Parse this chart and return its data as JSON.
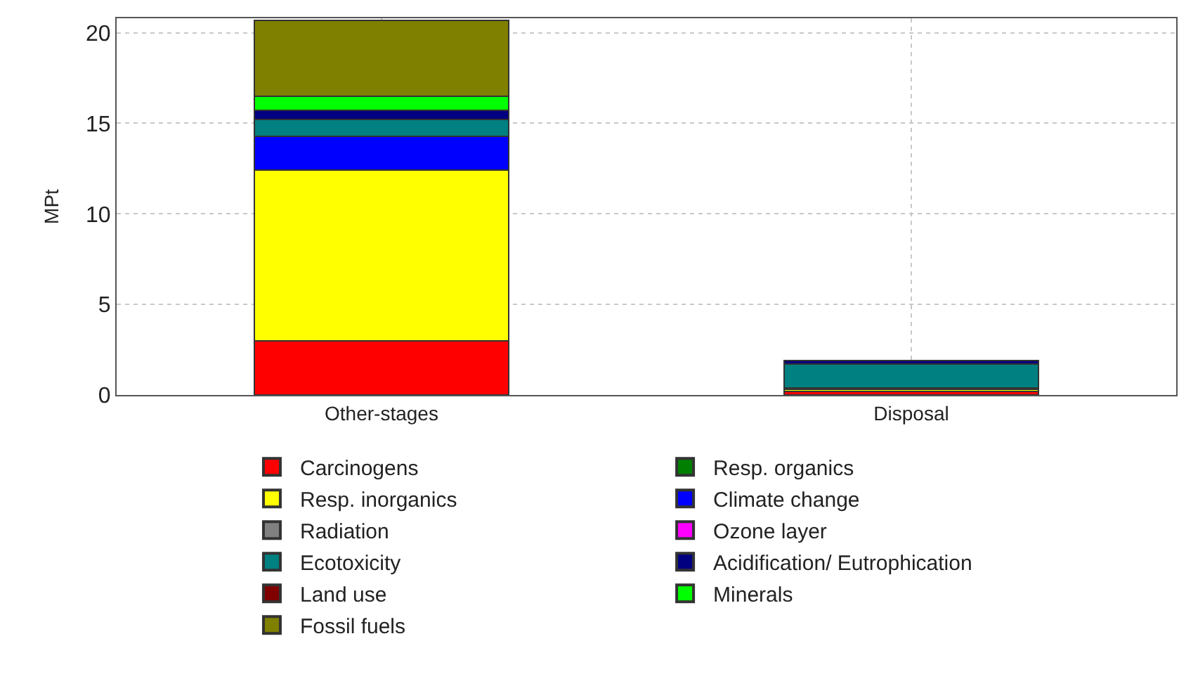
{
  "chart_data": {
    "type": "bar",
    "stacked": true,
    "ylabel": "MPt",
    "categories": [
      "Other-stages",
      "Disposal"
    ],
    "series": [
      {
        "name": "Carcinogens",
        "color": "#ff0000",
        "values": [
          3.0,
          0.2
        ]
      },
      {
        "name": "Resp. organics",
        "color": "#007f00",
        "values": [
          0,
          0
        ]
      },
      {
        "name": "Resp. inorganics",
        "color": "#ffff00",
        "values": [
          9.4,
          0.1
        ]
      },
      {
        "name": "Climate change",
        "color": "#0000ff",
        "values": [
          1.9,
          0.1
        ]
      },
      {
        "name": "Radiation",
        "color": "#808080",
        "values": [
          0,
          0
        ]
      },
      {
        "name": "Ozone layer",
        "color": "#ff00ff",
        "values": [
          0,
          0
        ]
      },
      {
        "name": "Ecotoxicity",
        "color": "#008080",
        "values": [
          0.9,
          1.3
        ]
      },
      {
        "name": "Acidification/ Eutrophication",
        "color": "#000080",
        "values": [
          0.5,
          0.2
        ]
      },
      {
        "name": "Land use",
        "color": "#800000",
        "values": [
          0,
          0
        ]
      },
      {
        "name": "Minerals",
        "color": "#00ff00",
        "values": [
          0.8,
          0
        ]
      },
      {
        "name": "Fossil fuels",
        "color": "#808000",
        "values": [
          4.2,
          0
        ]
      }
    ],
    "ylim": [
      0,
      20.8
    ],
    "yticks": [
      0,
      5,
      10,
      15,
      20
    ],
    "grid": true,
    "legend": "bottom"
  }
}
